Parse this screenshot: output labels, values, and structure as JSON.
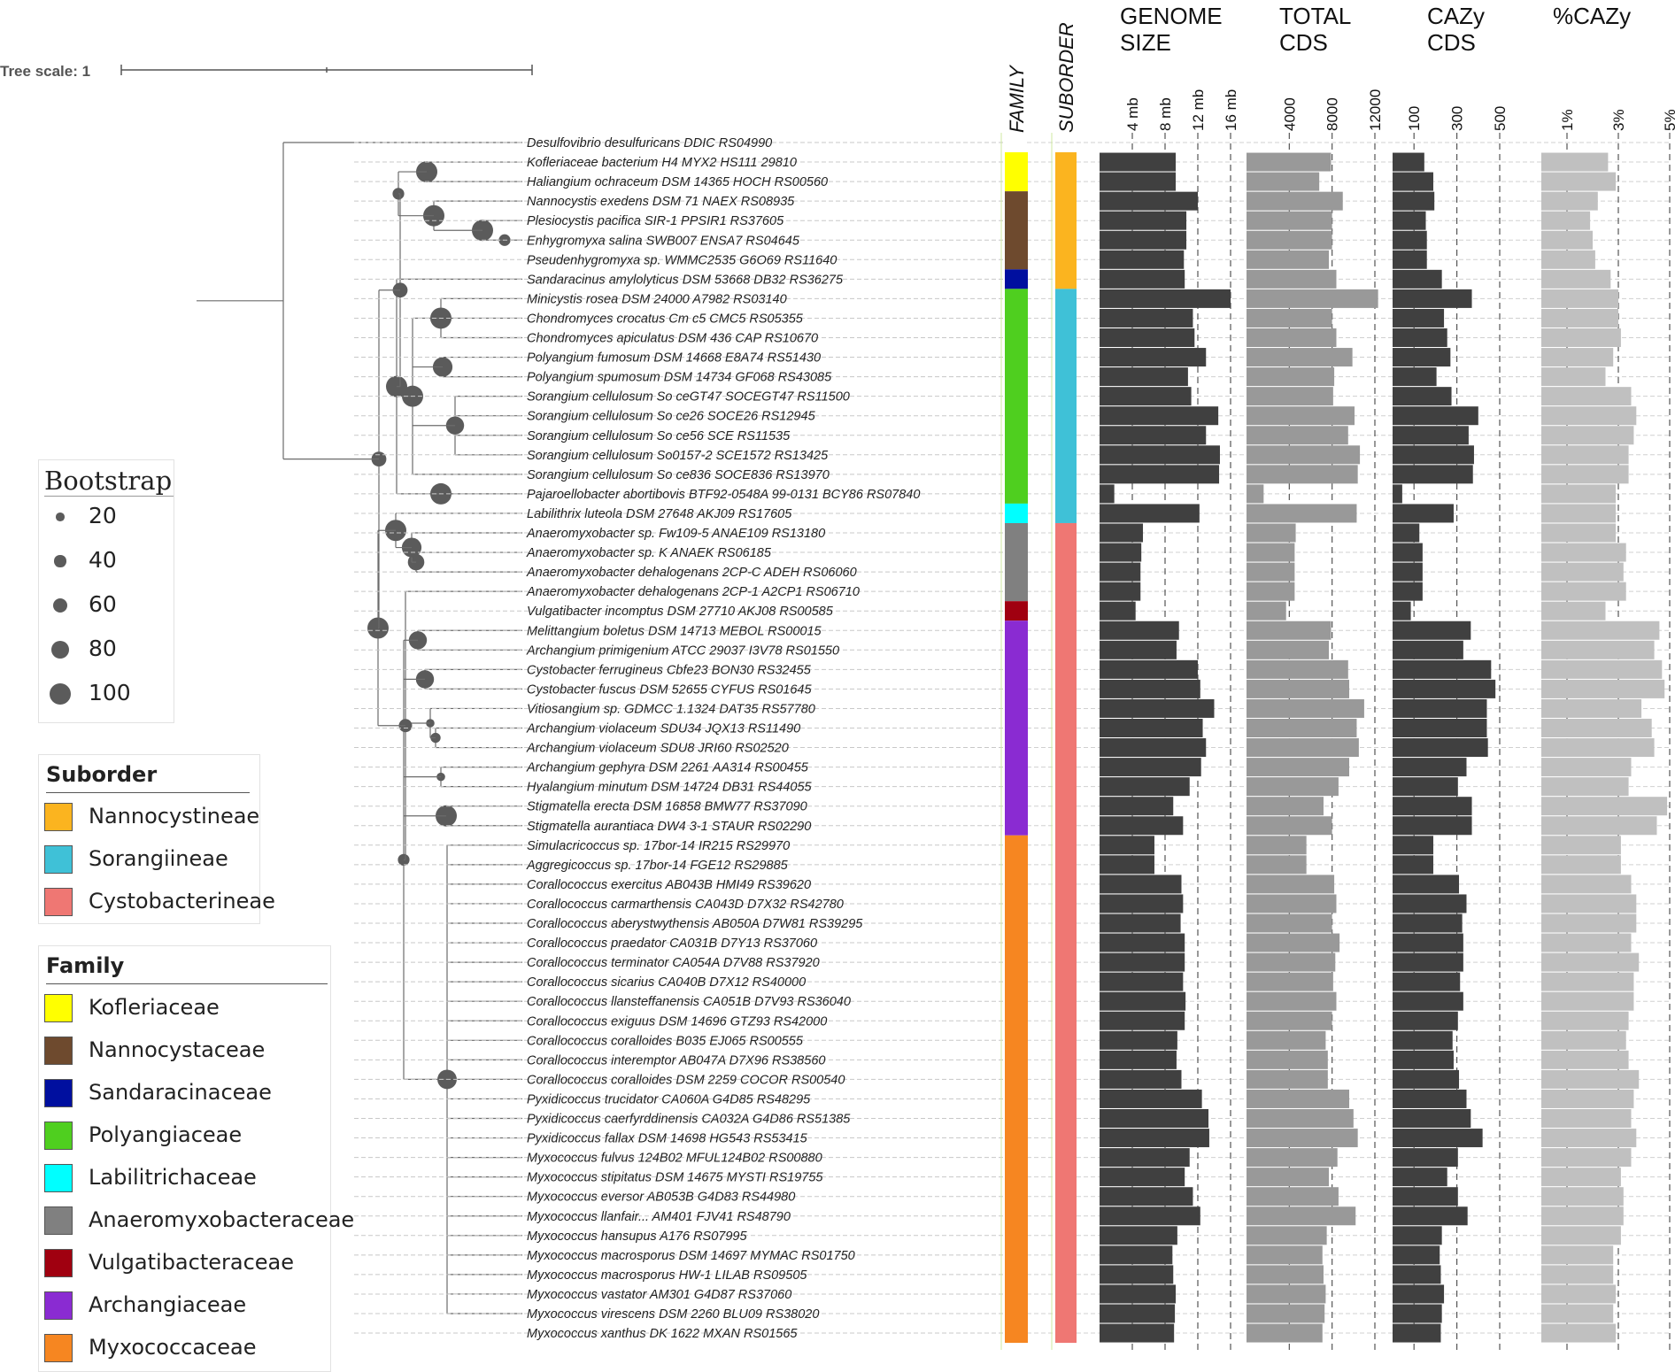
{
  "chart_data": {
    "type": "phylogenetic-tree-with-bar-panels",
    "tree_scale_label": "Tree scale: 1",
    "panels": [
      {
        "key": "family",
        "title": "FAMILY"
      },
      {
        "key": "suborder",
        "title": "SUBORDER"
      },
      {
        "key": "genome",
        "title_lines": [
          "GENOME",
          "SIZE"
        ],
        "ticks": [
          "4 mb",
          "8 mb",
          "12 mb",
          "16 mb"
        ],
        "tick_values": [
          4,
          8,
          12,
          16
        ],
        "unit": "mb",
        "color": "#404040"
      },
      {
        "key": "cds",
        "title_lines": [
          "TOTAL",
          "CDS"
        ],
        "ticks": [
          "4000",
          "8000",
          "12000"
        ],
        "tick_values": [
          4000,
          8000,
          12000
        ],
        "color": "#999999"
      },
      {
        "key": "cazy",
        "title_lines": [
          "CAZy",
          "CDS"
        ],
        "ticks": [
          "100",
          "300",
          "500"
        ],
        "tick_values": [
          100,
          300,
          500
        ],
        "color": "#404040"
      },
      {
        "key": "pct",
        "title_lines": [
          "%CAZy"
        ],
        "ticks": [
          "1%",
          "3%",
          "5%"
        ],
        "tick_values": [
          1,
          3,
          5
        ],
        "unit": "%",
        "color": "#c0c0c0"
      }
    ],
    "suborders": [
      {
        "name": "Nannocystineae",
        "color": "#FBB41F"
      },
      {
        "name": "Sorangiineae",
        "color": "#3FC1D7"
      },
      {
        "name": "Cystobacterineae",
        "color": "#EF7773"
      }
    ],
    "families": [
      {
        "name": "Kofleriaceae",
        "color": "#FFFF00"
      },
      {
        "name": "Nannocystaceae",
        "color": "#6E4A2E"
      },
      {
        "name": "Sandaracinaceae",
        "color": "#000F9F"
      },
      {
        "name": "Polyangiaceae",
        "color": "#4FCF1F"
      },
      {
        "name": "Labilitrichaceae",
        "color": "#00FFFF"
      },
      {
        "name": "Anaeromyxobacteraceae",
        "color": "#808080"
      },
      {
        "name": "Vulgatibacteraceae",
        "color": "#A00010"
      },
      {
        "name": "Archangiaceae",
        "color": "#8A2BD2"
      },
      {
        "name": "Myxococcaceae",
        "color": "#F68621"
      }
    ],
    "taxa": [
      {
        "label": "Desulfovibrio desulfuricans DDIC RS04990",
        "family": null,
        "suborder": null,
        "genome": null,
        "cds": null,
        "cazy": null,
        "pct": null
      },
      {
        "label": "Kofleriaceae bacterium H4 MYX2 HS111 29810",
        "family": 0,
        "suborder": 0,
        "genome": 9.3,
        "cds": 7900,
        "cazy": 148,
        "pct": 2.6
      },
      {
        "label": "Haliangium ochraceum DSM 14365 HOCH RS00560",
        "family": 0,
        "suborder": 0,
        "genome": 9.3,
        "cds": 6800,
        "cazy": 190,
        "pct": 2.9
      },
      {
        "label": "Nannocystis exedens DSM 71 NAEX RS08935",
        "family": 1,
        "suborder": 0,
        "genome": 12.0,
        "cds": 9000,
        "cazy": 195,
        "pct": 2.2
      },
      {
        "label": "Plesiocystis pacifica SIR-1 PPSIR1 RS37605",
        "family": 1,
        "suborder": 0,
        "genome": 10.6,
        "cds": 8000,
        "cazy": 155,
        "pct": 1.9
      },
      {
        "label": "Enhygromyxa salina SWB007 ENSA7 RS04645",
        "family": 1,
        "suborder": 0,
        "genome": 10.6,
        "cds": 8000,
        "cazy": 160,
        "pct": 2.0
      },
      {
        "label": "Pseudenhygromyxa sp. WMMC2535 G6O69 RS11640",
        "family": 1,
        "suborder": 0,
        "genome": 10.3,
        "cds": 7700,
        "cazy": 160,
        "pct": 2.1
      },
      {
        "label": "Sandaracinus amylolyticus DSM 53668 DB32 RS36275",
        "family": 2,
        "suborder": 0,
        "genome": 10.4,
        "cds": 8400,
        "cazy": 230,
        "pct": 2.7
      },
      {
        "label": "Minicystis rosea DSM 24000 A7982 RS03140",
        "family": 3,
        "suborder": 1,
        "genome": 16.0,
        "cds": 12300,
        "cazy": 370,
        "pct": 3.0
      },
      {
        "label": "Chondromyces crocatus Cm c5 CMC5 RS05355",
        "family": 3,
        "suborder": 1,
        "genome": 11.4,
        "cds": 8000,
        "cazy": 240,
        "pct": 3.0
      },
      {
        "label": "Chondromyces apiculatus DSM 436 CAP RS10670",
        "family": 3,
        "suborder": 1,
        "genome": 11.6,
        "cds": 8400,
        "cazy": 255,
        "pct": 3.1
      },
      {
        "label": "Polyangium fumosum DSM 14668 E8A74 RS51430",
        "family": 3,
        "suborder": 1,
        "genome": 13.0,
        "cds": 9900,
        "cazy": 270,
        "pct": 2.8
      },
      {
        "label": "Polyangium spumosum DSM 14734 GF068 RS43085",
        "family": 3,
        "suborder": 1,
        "genome": 10.8,
        "cds": 8200,
        "cazy": 205,
        "pct": 2.5
      },
      {
        "label": "Sorangium cellulosum So ceGT47 SOCEGT47 RS11500",
        "family": 3,
        "suborder": 1,
        "genome": 11.2,
        "cds": 8100,
        "cazy": 275,
        "pct": 3.5
      },
      {
        "label": "Sorangium cellulosum So ce26 SOCE26 RS12945",
        "family": 3,
        "suborder": 1,
        "genome": 14.5,
        "cds": 10100,
        "cazy": 400,
        "pct": 3.7
      },
      {
        "label": "Sorangium cellulosum So ce56 SCE RS11535",
        "family": 3,
        "suborder": 1,
        "genome": 13.0,
        "cds": 9500,
        "cazy": 355,
        "pct": 3.6
      },
      {
        "label": "Sorangium cellulosum So0157-2 SCE1572 RS13425",
        "family": 3,
        "suborder": 1,
        "genome": 14.7,
        "cds": 10600,
        "cazy": 380,
        "pct": 3.4
      },
      {
        "label": "Sorangium cellulosum So ce836 SOCE836 RS13970",
        "family": 3,
        "suborder": 1,
        "genome": 14.6,
        "cds": 10400,
        "cazy": 375,
        "pct": 3.4
      },
      {
        "label": "Pajaroellobacter abortibovis BTF92-0548A 99-0131 BCY86 RS07840",
        "family": 3,
        "suborder": 1,
        "genome": 1.8,
        "cds": 1600,
        "cazy": 45,
        "pct": 2.9
      },
      {
        "label": "Labilithrix luteola DSM 27648 AKJ09 RS17605",
        "family": 4,
        "suborder": 1,
        "genome": 12.2,
        "cds": 10300,
        "cazy": 285,
        "pct": 2.9
      },
      {
        "label": "Anaeromyxobacter sp. Fw109-5 ANAE109 RS13180",
        "family": 5,
        "suborder": 2,
        "genome": 5.3,
        "cds": 4600,
        "cazy": 125,
        "pct": 2.9
      },
      {
        "label": "Anaeromyxobacter sp. K ANAEK RS06185",
        "family": 5,
        "suborder": 2,
        "genome": 5.1,
        "cds": 4500,
        "cazy": 140,
        "pct": 3.3
      },
      {
        "label": "Anaeromyxobacter dehalogenans 2CP-C ADEH RS06060",
        "family": 5,
        "suborder": 2,
        "genome": 5.0,
        "cds": 4500,
        "cazy": 140,
        "pct": 3.2
      },
      {
        "label": "Anaeromyxobacter dehalogenans 2CP-1 A2CP1 RS06710",
        "family": 5,
        "suborder": 2,
        "genome": 5.0,
        "cds": 4500,
        "cazy": 140,
        "pct": 3.3
      },
      {
        "label": "Vulgatibacter incomptus DSM 27710 AKJ08 RS00585",
        "family": 6,
        "suborder": 2,
        "genome": 4.4,
        "cds": 3700,
        "cazy": 85,
        "pct": 2.5
      },
      {
        "label": "Melittangium boletus DSM 14713 MEBOL RS00015",
        "family": 7,
        "suborder": 2,
        "genome": 9.7,
        "cds": 7900,
        "cazy": 365,
        "pct": 4.6
      },
      {
        "label": "Archangium primigenium ATCC 29037 I3V78 RS01550",
        "family": 7,
        "suborder": 2,
        "genome": 9.4,
        "cds": 7700,
        "cazy": 330,
        "pct": 4.4
      },
      {
        "label": "Cystobacter ferrugineus Cbfe23 BON30 RS32455",
        "family": 7,
        "suborder": 2,
        "genome": 12.0,
        "cds": 9500,
        "cazy": 460,
        "pct": 4.7
      },
      {
        "label": "Cystobacter fuscus DSM 52655 CYFUS RS01645",
        "family": 7,
        "suborder": 2,
        "genome": 12.3,
        "cds": 9600,
        "cazy": 480,
        "pct": 4.8
      },
      {
        "label": "Vitiosangium sp. GDMCC 1.1324 DAT35 RS57780",
        "family": 7,
        "suborder": 2,
        "genome": 14.0,
        "cds": 11000,
        "cazy": 440,
        "pct": 3.9
      },
      {
        "label": "Archangium violaceum SDU34 JQX13 RS11490",
        "family": 7,
        "suborder": 2,
        "genome": 12.6,
        "cds": 10300,
        "cazy": 440,
        "pct": 4.3
      },
      {
        "label": "Archangium violaceum SDU8 JRI60 RS02520",
        "family": 7,
        "suborder": 2,
        "genome": 13.0,
        "cds": 10500,
        "cazy": 445,
        "pct": 4.4
      },
      {
        "label": "Archangium gephyra DSM 2261 AA314 RS00455",
        "family": 7,
        "suborder": 2,
        "genome": 12.4,
        "cds": 9600,
        "cazy": 345,
        "pct": 3.5
      },
      {
        "label": "Hyalangium minutum DSM 14724 DB31 RS44055",
        "family": 7,
        "suborder": 2,
        "genome": 11.0,
        "cds": 8600,
        "cazy": 305,
        "pct": 3.4
      },
      {
        "label": "Stigmatella erecta DSM 16858 BMW77 RS37090",
        "family": 7,
        "suborder": 2,
        "genome": 9.0,
        "cds": 7200,
        "cazy": 370,
        "pct": 4.9
      },
      {
        "label": "Stigmatella aurantiaca DW4 3-1 STAUR RS02290",
        "family": 7,
        "suborder": 2,
        "genome": 10.2,
        "cds": 8000,
        "cazy": 370,
        "pct": 4.5
      },
      {
        "label": "Simulacricoccus sp. 17bor-14 IR215 RS29970",
        "family": 8,
        "suborder": 2,
        "genome": 6.7,
        "cds": 5600,
        "cazy": 190,
        "pct": 3.1
      },
      {
        "label": "Aggregicoccus sp. 17bor-14 FGE12 RS29885",
        "family": 8,
        "suborder": 2,
        "genome": 6.7,
        "cds": 5600,
        "cazy": 190,
        "pct": 3.1
      },
      {
        "label": "Corallococcus exercitus AB043B HMI49 RS39620",
        "family": 8,
        "suborder": 2,
        "genome": 10.0,
        "cds": 8200,
        "cazy": 310,
        "pct": 3.5
      },
      {
        "label": "Corallococcus carmarthensis CA043D D7X32 RS42780",
        "family": 8,
        "suborder": 2,
        "genome": 10.2,
        "cds": 8400,
        "cazy": 345,
        "pct": 3.7
      },
      {
        "label": "Corallococcus aberystwythensis AB050A D7W81 RS39295",
        "family": 8,
        "suborder": 2,
        "genome": 9.9,
        "cds": 8000,
        "cazy": 325,
        "pct": 3.7
      },
      {
        "label": "Corallococcus praedator CA031B D7Y13 RS37060",
        "family": 8,
        "suborder": 2,
        "genome": 10.4,
        "cds": 8700,
        "cazy": 330,
        "pct": 3.5
      },
      {
        "label": "Corallococcus terminator CA054A D7V88 RS37920",
        "family": 8,
        "suborder": 2,
        "genome": 10.4,
        "cds": 8300,
        "cazy": 330,
        "pct": 3.8
      },
      {
        "label": "Corallococcus sicarius CA040B D7X12 RS40000",
        "family": 8,
        "suborder": 2,
        "genome": 10.2,
        "cds": 8100,
        "cazy": 315,
        "pct": 3.6
      },
      {
        "label": "Corallococcus llansteffanensis CA051B D7V93 RS36040",
        "family": 8,
        "suborder": 2,
        "genome": 10.5,
        "cds": 8400,
        "cazy": 330,
        "pct": 3.6
      },
      {
        "label": "Corallococcus exiguus DSM 14696 GTZ93 RS42000",
        "family": 8,
        "suborder": 2,
        "genome": 10.4,
        "cds": 8000,
        "cazy": 305,
        "pct": 3.4
      },
      {
        "label": "Corallococcus coralloides B035 EJ065 RS00555",
        "family": 8,
        "suborder": 2,
        "genome": 9.5,
        "cds": 7400,
        "cazy": 280,
        "pct": 3.3
      },
      {
        "label": "Corallococcus interemptor AB047A D7X96 RS38560",
        "family": 8,
        "suborder": 2,
        "genome": 9.4,
        "cds": 7600,
        "cazy": 285,
        "pct": 3.4
      },
      {
        "label": "Corallococcus coralloides DSM 2259 COCOR RS00540",
        "family": 8,
        "suborder": 2,
        "genome": 10.0,
        "cds": 7600,
        "cazy": 310,
        "pct": 3.8
      },
      {
        "label": "Pyxidicoccus trucidator CA060A G4D85 RS48295",
        "family": 8,
        "suborder": 2,
        "genome": 12.5,
        "cds": 9600,
        "cazy": 345,
        "pct": 3.6
      },
      {
        "label": "Pyxidicoccus caerfyrddinensis CA032A G4D86 RS51385",
        "family": 8,
        "suborder": 2,
        "genome": 13.3,
        "cds": 10000,
        "cazy": 365,
        "pct": 3.5
      },
      {
        "label": "Pyxidicoccus fallax DSM 14698 HG543 RS53415",
        "family": 8,
        "suborder": 2,
        "genome": 13.4,
        "cds": 10400,
        "cazy": 420,
        "pct": 3.7
      },
      {
        "label": "Myxococcus fulvus 124B02 MFUL124B02 RS00880",
        "family": 8,
        "suborder": 2,
        "genome": 11.0,
        "cds": 8500,
        "cazy": 305,
        "pct": 3.5
      },
      {
        "label": "Myxococcus stipitatus DSM 14675 MYSTI RS19755",
        "family": 8,
        "suborder": 2,
        "genome": 10.4,
        "cds": 7700,
        "cazy": 255,
        "pct": 3.1
      },
      {
        "label": "Myxococcus eversor AB053B G4D83 RS44980",
        "family": 8,
        "suborder": 2,
        "genome": 11.4,
        "cds": 8600,
        "cazy": 305,
        "pct": 3.2
      },
      {
        "label": "Myxococcus llanfair... AM401 FJV41 RS48790",
        "family": 8,
        "suborder": 2,
        "genome": 12.3,
        "cds": 10200,
        "cazy": 350,
        "pct": 3.2
      },
      {
        "label": "Myxococcus hansupus A176 RS07995",
        "family": 8,
        "suborder": 2,
        "genome": 9.5,
        "cds": 7500,
        "cazy": 230,
        "pct": 3.1
      },
      {
        "label": "Myxococcus macrosporus DSM 14697 MYMAC RS01750",
        "family": 8,
        "suborder": 2,
        "genome": 8.9,
        "cds": 7100,
        "cazy": 220,
        "pct": 2.8
      },
      {
        "label": "Myxococcus macrosporus HW-1 LILAB RS09505",
        "family": 8,
        "suborder": 2,
        "genome": 9.0,
        "cds": 7200,
        "cazy": 225,
        "pct": 2.8
      },
      {
        "label": "Myxococcus vastator AM301 G4D87 RS37060",
        "family": 8,
        "suborder": 2,
        "genome": 9.3,
        "cds": 7400,
        "cazy": 240,
        "pct": 2.9
      },
      {
        "label": "Myxococcus virescens DSM 2260 BLU09 RS38020",
        "family": 8,
        "suborder": 2,
        "genome": 9.2,
        "cds": 7300,
        "cazy": 230,
        "pct": 2.8
      },
      {
        "label": "Myxococcus xanthus DK 1622 MXAN RS01565",
        "family": 8,
        "suborder": 2,
        "genome": 9.1,
        "cds": 7100,
        "cazy": 225,
        "pct": 2.9
      }
    ]
  },
  "legends": {
    "bootstrap": {
      "title": "Bootstrap",
      "items": [
        {
          "value": 20
        },
        {
          "value": 40
        },
        {
          "value": 60
        },
        {
          "value": 80
        },
        {
          "value": 100
        }
      ]
    },
    "suborder_title": "Suborder",
    "family_title": "Family"
  }
}
